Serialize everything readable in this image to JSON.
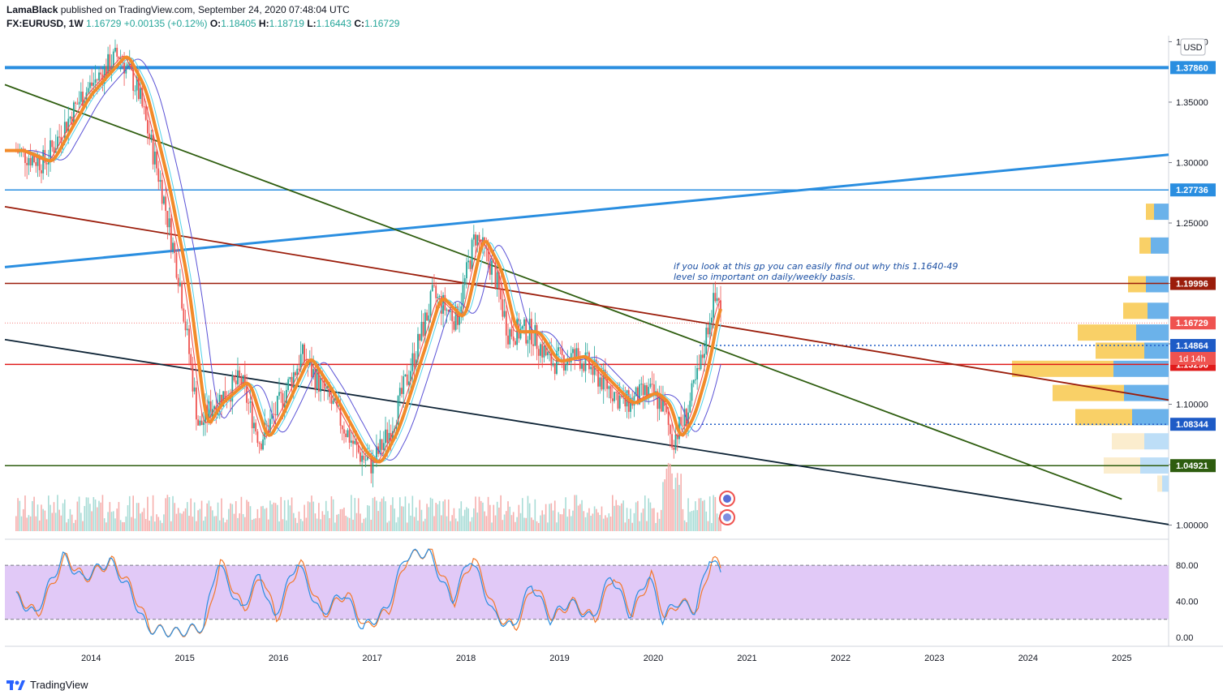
{
  "header": {
    "publisher": "LamaBlack",
    "published_text": "published on TradingView.com, September 24, 2020 07:48:04 UTC",
    "symbol": "FX:EURUSD, 1W",
    "last": "1.16729",
    "change": "+0.00135 (+0.12%)",
    "o_label": "O:",
    "o": "1.18405",
    "h_label": "H:",
    "h": "1.18719",
    "l_label": "L:",
    "l": "1.16443",
    "c_label": "C:",
    "c": "1.16729"
  },
  "currency_button": "USD",
  "footer": {
    "brand": "TradingView"
  },
  "annotation": {
    "line1": "if you look at this gp you can easily find out why this 1.1640-49",
    "line2": "level so important on daily/weekly basis."
  },
  "countdown_label": "1d 14h",
  "colors": {
    "up": "#26a69a",
    "down": "#ef5350",
    "blue_line": "#2a8ee0",
    "orange_ma": "#f28b2a",
    "support_green": "#2e5d0f",
    "resistance_red": "#e01b1b",
    "dark_red": "#9b1d0b",
    "rsi_band": "#e1c9f7"
  },
  "chart_data": {
    "type": "candlestick",
    "symbol": "FX:EURUSD",
    "interval": "1W",
    "x_ticks": [
      "2014",
      "2015",
      "2016",
      "2017",
      "2018",
      "2019",
      "2020",
      "2021",
      "2022",
      "2023",
      "2024",
      "2025"
    ],
    "y_ticks": [
      "1.00000",
      "1.05000",
      "1.10000",
      "1.15000",
      "1.20000",
      "1.25000",
      "1.30000",
      "1.35000",
      "1.40000"
    ],
    "ylim": [
      0.995,
      1.405
    ],
    "price_labels": [
      {
        "value": 1.3786,
        "text": "1.37860",
        "color": "#2a8ee0"
      },
      {
        "value": 1.27736,
        "text": "1.27736",
        "color": "#2a8ee0"
      },
      {
        "value": 1.19996,
        "text": "1.19996",
        "color": "#9b1d0b"
      },
      {
        "value": 1.16729,
        "text": "1.16729",
        "color": "#ef5350"
      },
      {
        "value": 1.14864,
        "text": "1.14864",
        "color": "#1e5bc6"
      },
      {
        "value": 1.13296,
        "text": "1.13296",
        "color": "#e01b1b"
      },
      {
        "value": 1.08344,
        "text": "1.08344",
        "color": "#1e5bc6"
      },
      {
        "value": 1.04921,
        "text": "1.04921",
        "color": "#2e5d0f"
      }
    ],
    "price_path": [
      [
        2013.2,
        1.31
      ],
      [
        2013.5,
        1.3
      ],
      [
        2013.9,
        1.355
      ],
      [
        2014.3,
        1.39
      ],
      [
        2014.5,
        1.36
      ],
      [
        2014.75,
        1.28
      ],
      [
        2014.95,
        1.2
      ],
      [
        2015.15,
        1.08
      ],
      [
        2015.3,
        1.1
      ],
      [
        2015.6,
        1.12
      ],
      [
        2015.8,
        1.07
      ],
      [
        2015.95,
        1.09
      ],
      [
        2016.25,
        1.14
      ],
      [
        2016.5,
        1.11
      ],
      [
        2016.85,
        1.06
      ],
      [
        2017.0,
        1.05
      ],
      [
        2017.2,
        1.08
      ],
      [
        2017.45,
        1.14
      ],
      [
        2017.65,
        1.19
      ],
      [
        2017.9,
        1.17
      ],
      [
        2018.1,
        1.24
      ],
      [
        2018.3,
        1.21
      ],
      [
        2018.45,
        1.16
      ],
      [
        2018.7,
        1.16
      ],
      [
        2018.9,
        1.135
      ],
      [
        2019.2,
        1.14
      ],
      [
        2019.45,
        1.12
      ],
      [
        2019.7,
        1.1
      ],
      [
        2019.95,
        1.11
      ],
      [
        2020.1,
        1.1
      ],
      [
        2020.2,
        1.07
      ],
      [
        2020.35,
        1.09
      ],
      [
        2020.5,
        1.13
      ],
      [
        2020.62,
        1.18
      ],
      [
        2020.7,
        1.19
      ],
      [
        2020.73,
        1.167
      ]
    ],
    "volume_profile_levels": [
      1.26,
      1.232,
      1.2,
      1.178,
      1.16,
      1.145,
      1.13,
      1.11,
      1.09,
      1.07,
      1.05,
      1.035
    ],
    "rsi_panel": {
      "y_ticks": [
        "0.00",
        "40.00",
        "80.00"
      ],
      "upper": 80,
      "lower": 20,
      "k_path": [
        [
          2013.2,
          45
        ],
        [
          2013.4,
          25
        ],
        [
          2013.7,
          90
        ],
        [
          2013.9,
          65
        ],
        [
          2014.2,
          85
        ],
        [
          2014.4,
          55
        ],
        [
          2014.6,
          10
        ],
        [
          2014.9,
          5
        ],
        [
          2015.2,
          12
        ],
        [
          2015.35,
          85
        ],
        [
          2015.6,
          30
        ],
        [
          2015.8,
          70
        ],
        [
          2015.95,
          20
        ],
        [
          2016.2,
          85
        ],
        [
          2016.45,
          25
        ],
        [
          2016.7,
          50
        ],
        [
          2016.9,
          10
        ],
        [
          2017.15,
          30
        ],
        [
          2017.35,
          90
        ],
        [
          2017.6,
          95
        ],
        [
          2017.85,
          40
        ],
        [
          2018.05,
          90
        ],
        [
          2018.3,
          25
        ],
        [
          2018.5,
          10
        ],
        [
          2018.7,
          60
        ],
        [
          2018.9,
          20
        ],
        [
          2019.1,
          40
        ],
        [
          2019.35,
          20
        ],
        [
          2019.55,
          70
        ],
        [
          2019.75,
          25
        ],
        [
          2019.95,
          70
        ],
        [
          2020.1,
          20
        ],
        [
          2020.25,
          40
        ],
        [
          2020.45,
          30
        ],
        [
          2020.6,
          90
        ],
        [
          2020.73,
          70
        ]
      ]
    }
  }
}
